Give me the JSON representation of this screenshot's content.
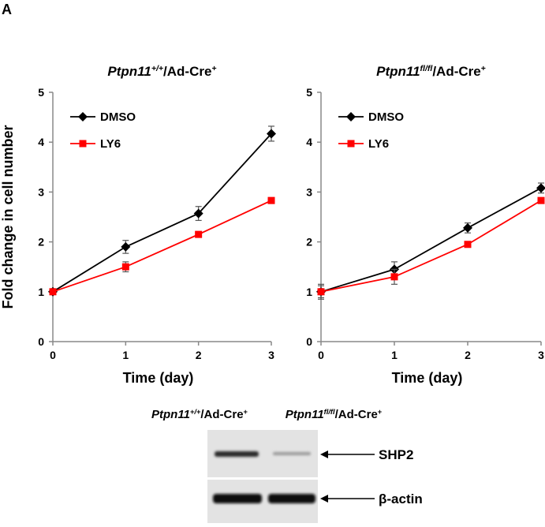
{
  "panel_label": "A",
  "chart_data": [
    {
      "type": "line",
      "title": {
        "gene": "Ptpn11",
        "genotype": "+/+",
        "construct": "/Ad-Cre",
        "cre": "+"
      },
      "ylabel": "Fold change in cell number",
      "xlabel": "Time (day)",
      "x": [
        0,
        1,
        2,
        3
      ],
      "series": [
        {
          "name": "DMSO",
          "color": "#000000",
          "marker": "diamond",
          "values": [
            1,
            1.9,
            2.57,
            4.17
          ],
          "errors": [
            0.03,
            0.13,
            0.14,
            0.15
          ]
        },
        {
          "name": "LY6",
          "color": "#ff0000",
          "marker": "square",
          "values": [
            1,
            1.5,
            2.15,
            2.83
          ],
          "errors": [
            0.03,
            0.1,
            0.03,
            0.03
          ]
        }
      ],
      "xlim": [
        0,
        3
      ],
      "xticks": [
        0,
        1,
        2,
        3
      ],
      "ylim": [
        0,
        5
      ],
      "yticks": [
        0,
        1,
        2,
        3,
        4,
        5
      ],
      "legend": "upper left"
    },
    {
      "type": "line",
      "title": {
        "gene": "Ptpn11",
        "genotype": "fl/fl",
        "construct": "/Ad-Cre",
        "cre": "+"
      },
      "xlabel": "Time (day)",
      "x": [
        0,
        1,
        2,
        3
      ],
      "series": [
        {
          "name": "DMSO",
          "color": "#000000",
          "marker": "diamond",
          "values": [
            1,
            1.45,
            2.28,
            3.08
          ],
          "errors": [
            0.15,
            0.15,
            0.1,
            0.1
          ]
        },
        {
          "name": "LY6",
          "color": "#ff0000",
          "marker": "square",
          "values": [
            1,
            1.3,
            1.95,
            2.83
          ],
          "errors": [
            0.12,
            0.15,
            0.05,
            0.03
          ]
        }
      ],
      "xlim": [
        0,
        3
      ],
      "xticks": [
        0,
        1,
        2,
        3
      ],
      "ylim": [
        0,
        5
      ],
      "yticks": [
        0,
        1,
        2,
        3,
        4,
        5
      ],
      "legend": "upper left"
    }
  ],
  "blot": {
    "lanes": [
      {
        "gene": "Ptpn11",
        "genotype": "+/+",
        "construct": "/Ad-Cre",
        "cre": "+"
      },
      {
        "gene": "Ptpn11",
        "genotype": "fl/fl",
        "construct": "/Ad-Cre",
        "cre": "+"
      }
    ],
    "bands": [
      "SHP2",
      "β-actin"
    ]
  }
}
